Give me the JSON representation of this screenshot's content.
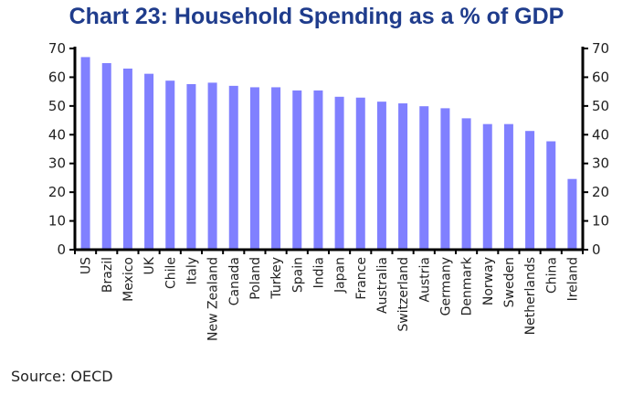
{
  "chart_data": {
    "type": "bar",
    "title": "Chart 23: Household Spending as a % of GDP",
    "source": "Source: OECD",
    "categories": [
      "US",
      "Brazil",
      "Mexico",
      "UK",
      "Chile",
      "Italy",
      "New Zealand",
      "Canada",
      "Poland",
      "Turkey",
      "Spain",
      "India",
      "Japan",
      "France",
      "Australia",
      "Switzerland",
      "Austria",
      "Germany",
      "Denmark",
      "Norway",
      "Sweden",
      "Netherlands",
      "China",
      "Ireland"
    ],
    "values": [
      67.0,
      64.9,
      63.0,
      61.2,
      58.8,
      57.6,
      58.1,
      57.0,
      56.5,
      56.5,
      55.4,
      55.4,
      53.2,
      52.9,
      51.5,
      50.9,
      49.9,
      49.2,
      45.7,
      43.7,
      43.7,
      41.3,
      37.7,
      24.6
    ],
    "ylim": [
      0,
      70
    ],
    "yticks": [
      0,
      10,
      20,
      30,
      40,
      50,
      60,
      70
    ],
    "axes": "left-and-right",
    "grid": false,
    "bar_color": "#8080ff"
  }
}
